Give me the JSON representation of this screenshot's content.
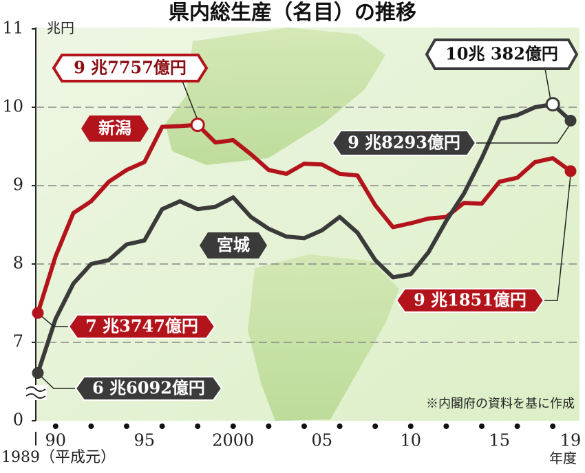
{
  "chart_data": {
    "type": "line",
    "title": "県内総生産（名目）の推移",
    "y_unit": "兆円",
    "x_unit": "年度",
    "source_note": "※内閣府の資料を基に作成",
    "x": [
      1989,
      1990,
      1991,
      1992,
      1993,
      1994,
      1995,
      1996,
      1997,
      1998,
      1999,
      2000,
      2001,
      2002,
      2003,
      2004,
      2005,
      2006,
      2007,
      2008,
      2009,
      2010,
      2011,
      2012,
      2013,
      2014,
      2015,
      2016,
      2017,
      2018,
      2019
    ],
    "xlim": [
      1989,
      2019
    ],
    "xticks": [
      {
        "value": 1989,
        "label": "1989（平成元）"
      },
      {
        "value": 1990,
        "label": "90"
      },
      {
        "value": 1995,
        "label": "95"
      },
      2000,
      {
        "value": 2005,
        "label": "05"
      },
      {
        "value": 2010,
        "label": "10"
      },
      {
        "value": 2015,
        "label": "15"
      },
      {
        "value": 2019,
        "label": "19"
      }
    ],
    "minor_xticks": [
      1990,
      1992,
      1994,
      1996,
      1998,
      2000,
      2002,
      2004,
      2006,
      2008,
      2010,
      2012,
      2014,
      2016,
      2018
    ],
    "ylim": [
      6.3,
      11
    ],
    "yticks": [
      0,
      7,
      8,
      9,
      10,
      11
    ],
    "axis_break": true,
    "grid": true,
    "series": [
      {
        "name": "新潟",
        "color": "#b3141b",
        "values": [
          7.3747,
          8.1,
          8.65,
          8.8,
          9.05,
          9.2,
          9.3,
          9.75,
          9.76,
          9.7757,
          9.55,
          9.58,
          9.4,
          9.2,
          9.15,
          9.28,
          9.27,
          9.15,
          9.13,
          8.75,
          8.47,
          8.52,
          8.58,
          8.6,
          8.78,
          8.77,
          9.05,
          9.1,
          9.3,
          9.35,
          9.1851
        ],
        "value_labels": [
          "7 兆3747億円",
          null,
          null,
          null,
          null,
          null,
          null,
          null,
          null,
          "9 兆7757億円",
          null,
          null,
          null,
          null,
          null,
          null,
          null,
          null,
          null,
          null,
          null,
          null,
          null,
          null,
          null,
          null,
          null,
          null,
          null,
          null,
          "9 兆1851億円"
        ]
      },
      {
        "name": "宮城",
        "color": "#3a3a3a",
        "values": [
          6.6092,
          7.3,
          7.75,
          8.0,
          8.05,
          8.25,
          8.3,
          8.7,
          8.8,
          8.7,
          8.73,
          8.85,
          8.6,
          8.45,
          8.35,
          8.33,
          8.43,
          8.6,
          8.4,
          8.05,
          7.83,
          7.87,
          8.15,
          8.55,
          8.9,
          9.35,
          9.85,
          9.9,
          10.0,
          10.0382,
          9.8293
        ],
        "value_labels": [
          "6 兆6092億円",
          null,
          null,
          null,
          null,
          null,
          null,
          null,
          null,
          null,
          null,
          null,
          null,
          null,
          null,
          null,
          null,
          null,
          null,
          null,
          null,
          null,
          null,
          null,
          null,
          null,
          null,
          null,
          null,
          "10兆 382億円",
          "9 兆8293億円"
        ]
      }
    ]
  }
}
